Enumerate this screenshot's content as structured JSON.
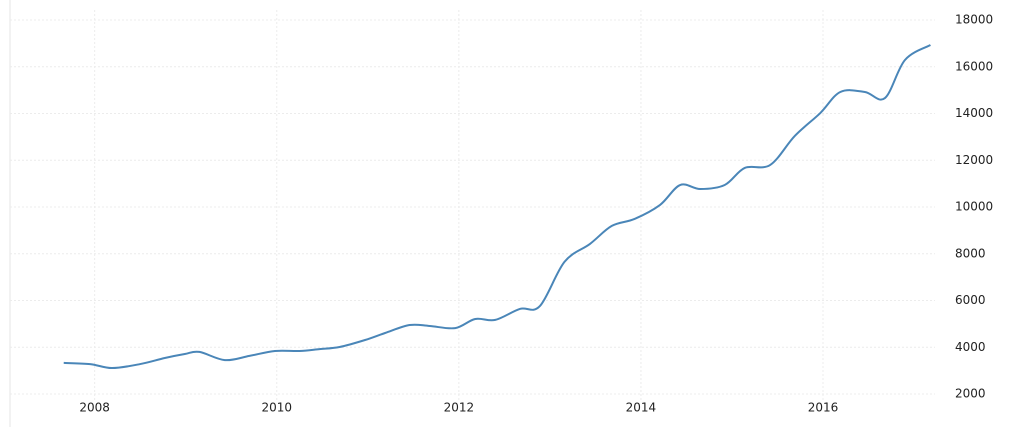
{
  "chart_data": {
    "type": "line",
    "x": [
      2007.66,
      2007.95,
      2008.19,
      2008.5,
      2008.77,
      2008.99,
      2009.15,
      2009.43,
      2009.7,
      2009.98,
      2010.25,
      2010.47,
      2010.69,
      2010.97,
      2011.19,
      2011.46,
      2011.68,
      2011.96,
      2012.18,
      2012.4,
      2012.67,
      2012.89,
      2013.16,
      2013.44,
      2013.68,
      2013.93,
      2014.21,
      2014.43,
      2014.65,
      2014.92,
      2015.14,
      2015.42,
      2015.69,
      2015.97,
      2016.19,
      2016.46,
      2016.68,
      2016.9,
      2017.18
    ],
    "series": [
      {
        "color": "#4a86b8",
        "values": [
          3330,
          3280,
          3110,
          3280,
          3540,
          3710,
          3800,
          3450,
          3630,
          3840,
          3840,
          3920,
          4010,
          4310,
          4610,
          4950,
          4910,
          4820,
          5210,
          5170,
          5640,
          5760,
          7650,
          8420,
          9190,
          9490,
          10090,
          10940,
          10770,
          10940,
          11670,
          11800,
          13040,
          14020,
          14920,
          14920,
          14660,
          16290,
          16930
        ]
      }
    ],
    "xlim": [
      2007.07,
      2017.23
    ],
    "xticks": [
      2008,
      2010,
      2012,
      2014,
      2016
    ],
    "ylim": [
      2000,
      18000
    ],
    "yticks": [
      2000,
      4000,
      6000,
      8000,
      10000,
      12000,
      14000,
      16000,
      18000
    ],
    "grid": true
  }
}
